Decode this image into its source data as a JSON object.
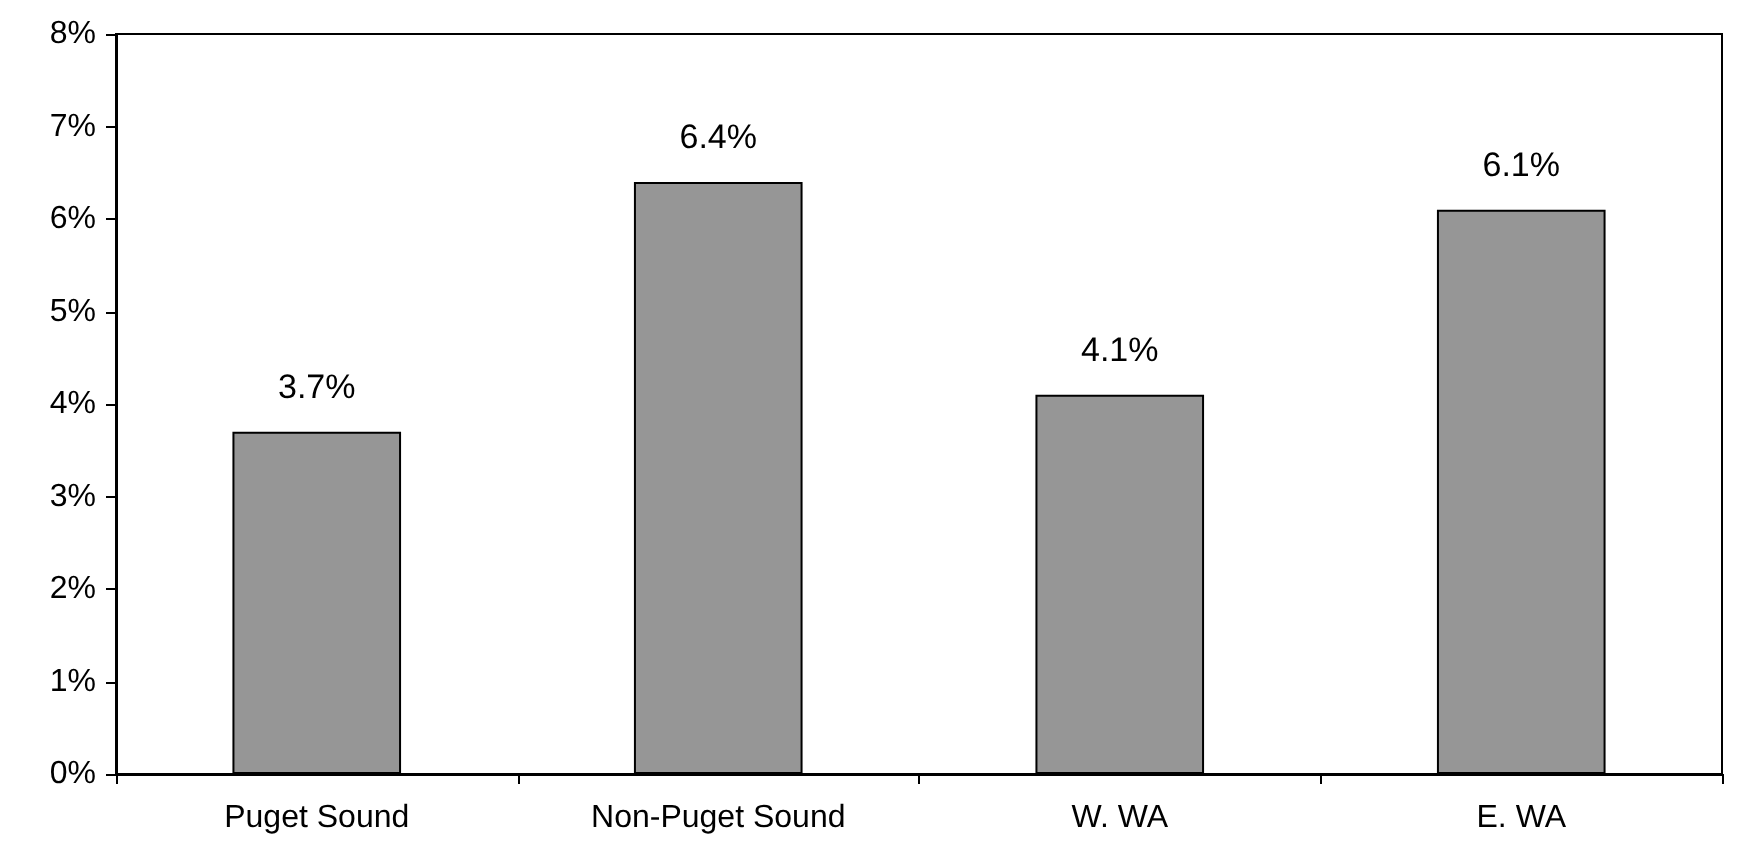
{
  "chart_data": {
    "type": "bar",
    "categories": [
      "Puget Sound",
      "Non-Puget Sound",
      "W. WA",
      "E. WA"
    ],
    "values": [
      3.7,
      6.4,
      4.1,
      6.1
    ],
    "value_labels": [
      "3.7%",
      "6.4%",
      "4.1%",
      "6.1%"
    ],
    "color": "#969696",
    "ylim": [
      0,
      8
    ],
    "yticks": [
      {
        "value": 0,
        "label": "0%"
      },
      {
        "value": 1,
        "label": "1%"
      },
      {
        "value": 2,
        "label": "2%"
      },
      {
        "value": 3,
        "label": "3%"
      },
      {
        "value": 4,
        "label": "4%"
      },
      {
        "value": 5,
        "label": "5%"
      },
      {
        "value": 6,
        "label": "6%"
      },
      {
        "value": 7,
        "label": "7%"
      },
      {
        "value": 8,
        "label": "8%"
      }
    ],
    "grid": false
  }
}
